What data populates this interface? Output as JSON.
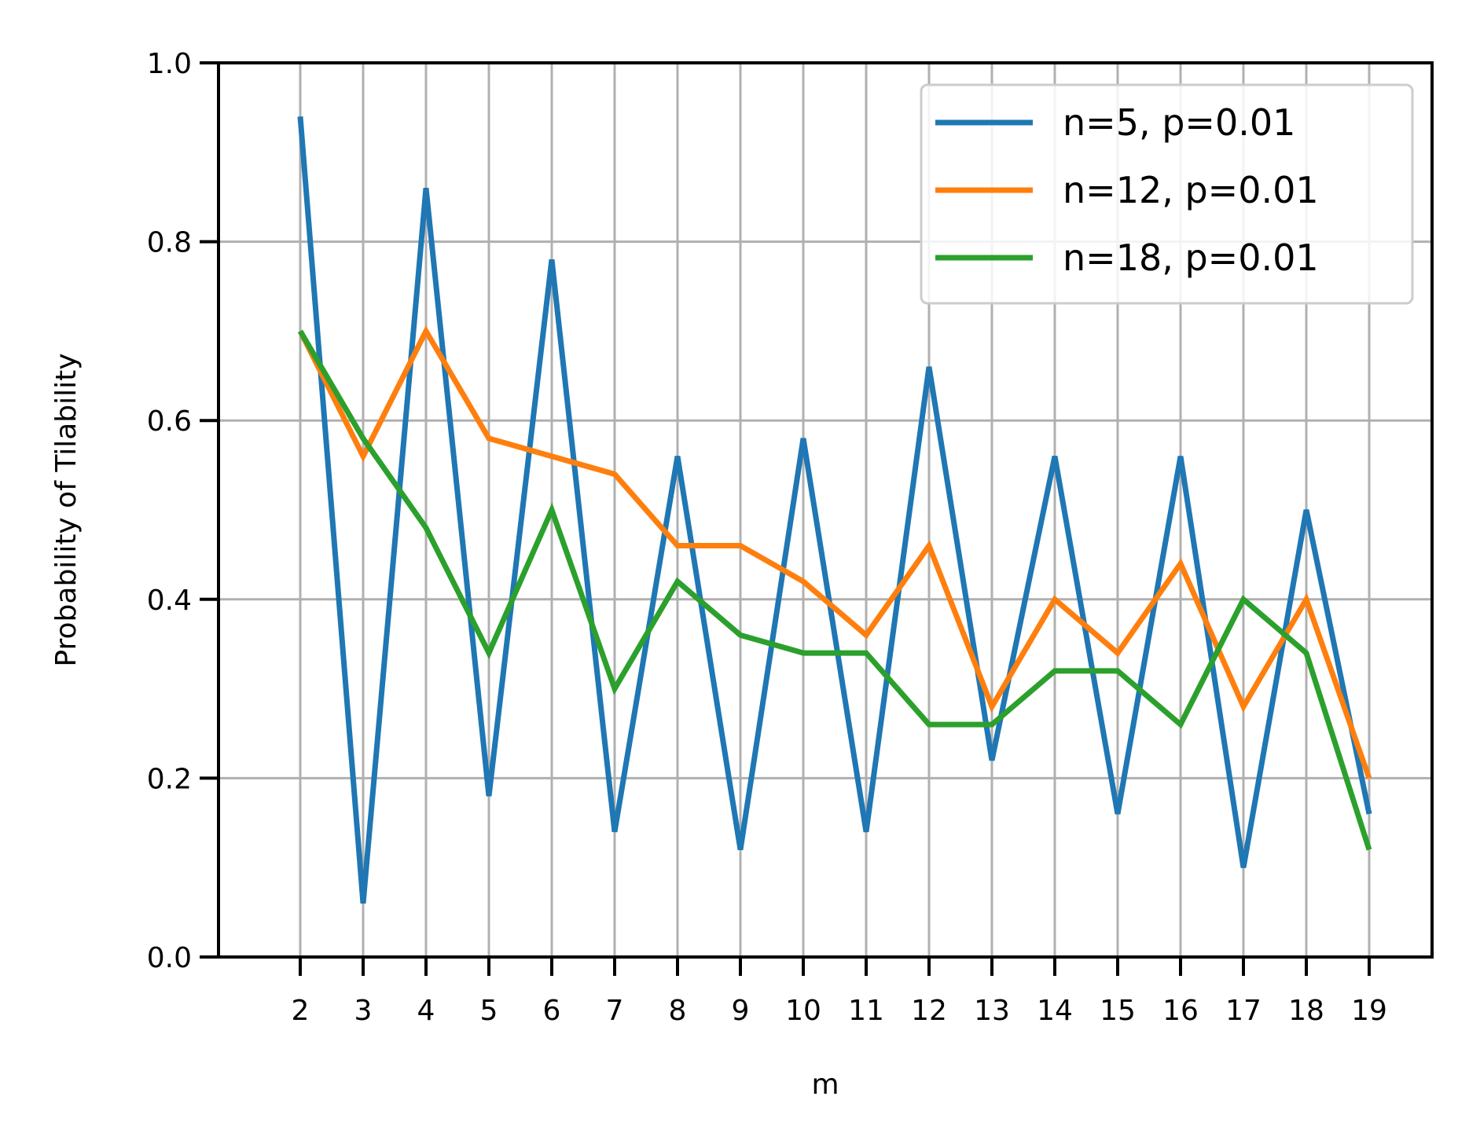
{
  "chart_data": {
    "type": "line",
    "xlabel": "m",
    "ylabel": "Probability of Tilability",
    "x": [
      2,
      3,
      4,
      5,
      6,
      7,
      8,
      9,
      10,
      11,
      12,
      13,
      14,
      15,
      16,
      17,
      18,
      19
    ],
    "xlim": [
      0.7,
      20.0
    ],
    "ylim": [
      0.0,
      1.0
    ],
    "yticks": [
      0.0,
      0.2,
      0.4,
      0.6,
      0.8,
      1.0
    ],
    "ytick_labels": [
      "0.0",
      "0.2",
      "0.4",
      "0.6",
      "0.8",
      "1.0"
    ],
    "grid": true,
    "legend_position": "top-right",
    "series": [
      {
        "name": "n=5, p=0.01",
        "color": "#1f77b4",
        "values": [
          0.94,
          0.06,
          0.86,
          0.18,
          0.78,
          0.14,
          0.56,
          0.12,
          0.58,
          0.14,
          0.66,
          0.22,
          0.56,
          0.16,
          0.56,
          0.1,
          0.5,
          0.16
        ]
      },
      {
        "name": "n=12, p=0.01",
        "color": "#ff7f0e",
        "values": [
          0.7,
          0.56,
          0.7,
          0.58,
          0.56,
          0.54,
          0.46,
          0.46,
          0.42,
          0.36,
          0.46,
          0.28,
          0.4,
          0.34,
          0.44,
          0.28,
          0.4,
          0.2
        ]
      },
      {
        "name": "n=18, p=0.01",
        "color": "#2ca02c",
        "values": [
          0.7,
          0.58,
          0.48,
          0.34,
          0.5,
          0.3,
          0.42,
          0.36,
          0.34,
          0.34,
          0.26,
          0.26,
          0.32,
          0.32,
          0.26,
          0.4,
          0.34,
          0.12
        ]
      }
    ]
  }
}
